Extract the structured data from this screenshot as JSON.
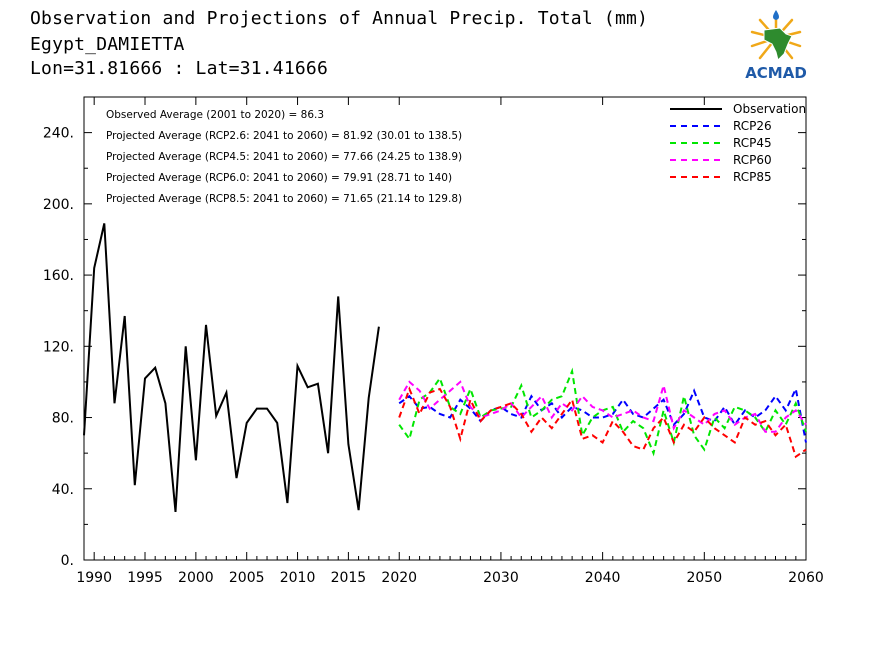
{
  "header": {
    "title": "Observation and Projections of Annual Precip. Total (mm)",
    "location": "Egypt_DAMIETTA",
    "coords": "Lon=31.81666 : Lat=31.41666"
  },
  "logo": {
    "text": "ACMAD",
    "name": "acmad-logo"
  },
  "colors": {
    "observation": "#000000",
    "rcp26": "#0000ff",
    "rcp45": "#00e600",
    "rcp60": "#ff00ff",
    "rcp85": "#ff0000"
  },
  "chart_data": {
    "type": "line",
    "xlim": [
      1989,
      2060
    ],
    "ylim": [
      0,
      260
    ],
    "x_ticks": [
      1990,
      1995,
      2000,
      2005,
      2010,
      2015,
      2020,
      2030,
      2040,
      2050,
      2060
    ],
    "y_ticks": [
      0,
      40,
      80,
      120,
      160,
      200,
      240
    ],
    "y_tick_labels": [
      "0.",
      "40.",
      "80.",
      "120.",
      "160.",
      "200.",
      "240."
    ],
    "grid": false,
    "legend_position": "top-right",
    "annotations": [
      "Observed Average (2001 to 2020) = 86.3",
      "Projected Average (RCP2.6: 2041 to 2060) = 81.92 (30.01 to 138.5)",
      "Projected Average (RCP4.5: 2041 to 2060) = 77.66 (24.25 to 138.9)",
      "Projected Average (RCP6.0: 2041 to 2060) = 79.91 (28.71 to 140)",
      "Projected Average (RCP8.5: 2041 to 2060) = 71.65 (21.14 to 129.8)"
    ],
    "series": [
      {
        "name": "Observation",
        "style": "solid",
        "x": [
          1989,
          1990,
          1991,
          1992,
          1993,
          1994,
          1995,
          1996,
          1997,
          1998,
          1999,
          2000,
          2001,
          2002,
          2003,
          2004,
          2005,
          2006,
          2007,
          2008,
          2009,
          2010,
          2011,
          2012,
          2013,
          2014,
          2015,
          2016,
          2017,
          2018,
          2019,
          2020
        ],
        "values": [
          70,
          164,
          189,
          88,
          137,
          42,
          102,
          108,
          88,
          27,
          120,
          56,
          132,
          81,
          94,
          46,
          77,
          85,
          85,
          77,
          32,
          109,
          97,
          99,
          60,
          148,
          65,
          28,
          91,
          131,
          null,
          null
        ]
      },
      {
        "name": "RCP26",
        "style": "dashed",
        "x": [
          2020,
          2021,
          2022,
          2023,
          2024,
          2025,
          2026,
          2027,
          2028,
          2029,
          2030,
          2031,
          2032,
          2033,
          2034,
          2035,
          2036,
          2037,
          2038,
          2039,
          2040,
          2041,
          2042,
          2043,
          2044,
          2045,
          2046,
          2047,
          2048,
          2049,
          2050,
          2051,
          2052,
          2053,
          2054,
          2055,
          2056,
          2057,
          2058,
          2059,
          2060
        ],
        "values": [
          88,
          92,
          85,
          86,
          82,
          80,
          90,
          85,
          78,
          84,
          86,
          82,
          80,
          92,
          84,
          88,
          80,
          86,
          84,
          80,
          80,
          82,
          90,
          82,
          80,
          85,
          90,
          76,
          82,
          95,
          80,
          78,
          86,
          76,
          84,
          80,
          84,
          92,
          84,
          96,
          66
        ]
      },
      {
        "name": "RCP45",
        "style": "dashed",
        "x": [
          2020,
          2021,
          2022,
          2023,
          2024,
          2025,
          2026,
          2027,
          2028,
          2029,
          2030,
          2031,
          2032,
          2033,
          2034,
          2035,
          2036,
          2037,
          2038,
          2039,
          2040,
          2041,
          2042,
          2043,
          2044,
          2045,
          2046,
          2047,
          2048,
          2049,
          2050,
          2051,
          2052,
          2053,
          2054,
          2055,
          2056,
          2057,
          2058,
          2059,
          2060
        ],
        "values": [
          76,
          68,
          90,
          94,
          102,
          86,
          82,
          96,
          80,
          84,
          85,
          86,
          98,
          80,
          84,
          90,
          92,
          106,
          70,
          80,
          84,
          86,
          72,
          78,
          74,
          60,
          84,
          66,
          92,
          70,
          62,
          80,
          74,
          86,
          84,
          80,
          72,
          84,
          76,
          88,
          72
        ]
      },
      {
        "name": "RCP60",
        "style": "dashed",
        "x": [
          2020,
          2021,
          2022,
          2023,
          2024,
          2025,
          2026,
          2027,
          2028,
          2029,
          2030,
          2031,
          2032,
          2033,
          2034,
          2035,
          2036,
          2037,
          2038,
          2039,
          2040,
          2041,
          2042,
          2043,
          2044,
          2045,
          2046,
          2047,
          2048,
          2049,
          2050,
          2051,
          2052,
          2053,
          2054,
          2055,
          2056,
          2057,
          2058,
          2059,
          2060
        ],
        "values": [
          90,
          100,
          95,
          85,
          90,
          95,
          100,
          86,
          80,
          82,
          84,
          88,
          80,
          86,
          92,
          80,
          88,
          84,
          92,
          86,
          84,
          80,
          82,
          84,
          80,
          78,
          98,
          74,
          84,
          80,
          76,
          82,
          84,
          76,
          80,
          82,
          72,
          72,
          80,
          84,
          76
        ]
      },
      {
        "name": "RCP85",
        "style": "dashed",
        "x": [
          2020,
          2021,
          2022,
          2023,
          2024,
          2025,
          2026,
          2027,
          2028,
          2029,
          2030,
          2031,
          2032,
          2033,
          2034,
          2035,
          2036,
          2037,
          2038,
          2039,
          2040,
          2041,
          2042,
          2043,
          2044,
          2045,
          2046,
          2047,
          2048,
          2049,
          2050,
          2051,
          2052,
          2053,
          2054,
          2055,
          2056,
          2057,
          2058,
          2059,
          2060
        ],
        "values": [
          80,
          96,
          82,
          94,
          96,
          86,
          68,
          90,
          78,
          84,
          86,
          88,
          82,
          72,
          80,
          74,
          82,
          90,
          68,
          70,
          66,
          78,
          72,
          64,
          62,
          74,
          80,
          66,
          76,
          72,
          80,
          74,
          70,
          66,
          80,
          76,
          78,
          70,
          76,
          58,
          62
        ]
      }
    ]
  }
}
